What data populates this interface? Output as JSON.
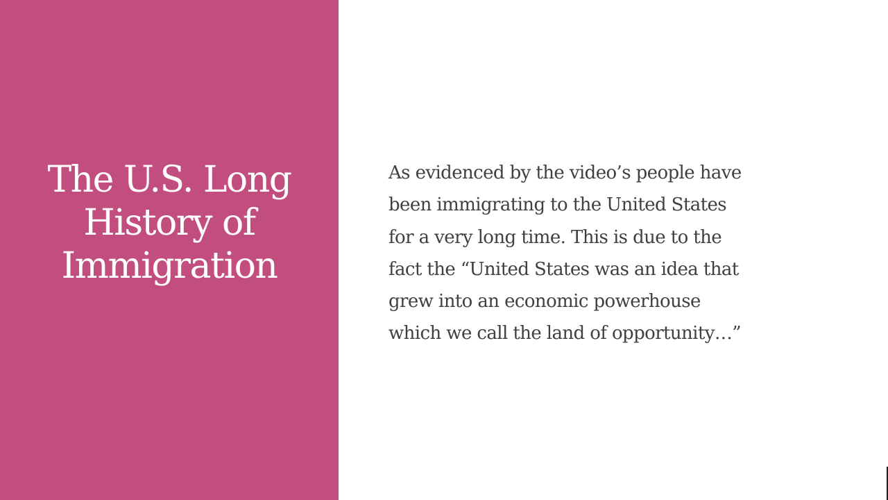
{
  "slide": {
    "title_lines": [
      "The U.S. Long",
      "History of",
      "Immigration"
    ],
    "body_lines": [
      "As evidenced by the video’s people have",
      "been immigrating to the United States",
      "for a very long time. This is due to the",
      "fact the “United States was an idea that",
      "grew into an economic powerhouse",
      "which we call the land of opportunity…”"
    ]
  },
  "colors": {
    "accent_panel": "#c24e7f",
    "title_text": "#ffffff",
    "body_text": "#404040",
    "background": "#ffffff"
  }
}
